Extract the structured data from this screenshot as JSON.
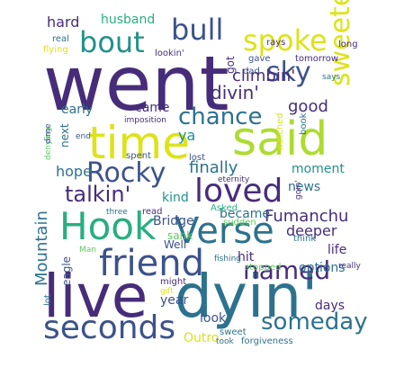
{
  "palette": {
    "dark-purple": "#472c7a",
    "navy": "#3b528b",
    "slate": "#2c728e",
    "teal": "#21918c",
    "sea-green": "#28ae80",
    "green": "#5ec962",
    "lime": "#addc30",
    "yellow": "#dde318"
  },
  "words": [
    {
      "text": "went",
      "color": "dark-purple"
    },
    {
      "text": "live",
      "color": "dark-purple"
    },
    {
      "text": "dyin'",
      "color": "slate"
    },
    {
      "text": "said",
      "color": "lime"
    },
    {
      "text": "time",
      "color": "yellow"
    },
    {
      "text": "Hook",
      "color": "sea-green"
    },
    {
      "text": "Verse",
      "color": "slate"
    },
    {
      "text": "friend",
      "color": "navy"
    },
    {
      "text": "seconds",
      "color": "navy"
    },
    {
      "text": "loved",
      "color": "dark-purple"
    },
    {
      "text": "Rocky",
      "color": "navy"
    },
    {
      "text": "spoke",
      "color": "yellow"
    },
    {
      "text": "bull",
      "color": "navy"
    },
    {
      "text": "bout",
      "color": "teal"
    },
    {
      "text": "sky",
      "color": "navy"
    },
    {
      "text": "sweeter",
      "color": "yellow"
    },
    {
      "text": "chance",
      "color": "slate"
    },
    {
      "text": "someday",
      "color": "slate"
    },
    {
      "text": "named",
      "color": "dark-purple"
    },
    {
      "text": "talkin'",
      "color": "dark-purple"
    },
    {
      "text": "climbin'",
      "color": "dark-purple"
    },
    {
      "text": "divin'",
      "color": "dark-purple"
    },
    {
      "text": "finally",
      "color": "slate"
    },
    {
      "text": "Fumanchu",
      "color": "dark-purple"
    },
    {
      "text": "Mountain",
      "color": "slate"
    },
    {
      "text": "good",
      "color": "dark-purple"
    },
    {
      "text": "husband",
      "color": "sea-green"
    },
    {
      "text": "hard",
      "color": "dark-purple"
    },
    {
      "text": "hope",
      "color": "slate"
    },
    {
      "text": "deeper",
      "color": "dark-purple"
    },
    {
      "text": "ya",
      "color": "teal"
    },
    {
      "text": "Bridge",
      "color": "navy"
    },
    {
      "text": "early",
      "color": "slate"
    },
    {
      "text": "came",
      "color": "dark-purple"
    },
    {
      "text": "moment",
      "color": "teal"
    },
    {
      "text": "news",
      "color": "slate"
    },
    {
      "text": "became",
      "color": "slate"
    },
    {
      "text": "kind",
      "color": "teal"
    },
    {
      "text": "hit",
      "color": "dark-purple"
    },
    {
      "text": "life",
      "color": "dark-purple"
    },
    {
      "text": "options",
      "color": "slate"
    },
    {
      "text": "days",
      "color": "dark-purple"
    },
    {
      "text": "year",
      "color": "navy"
    },
    {
      "text": "look",
      "color": "navy"
    },
    {
      "text": "Outro",
      "color": "yellow"
    },
    {
      "text": "eagle",
      "color": "navy"
    },
    {
      "text": "sank",
      "color": "green"
    },
    {
      "text": "Well",
      "color": "navy"
    },
    {
      "text": "next",
      "color": "slate"
    },
    {
      "text": "got",
      "color": "dark-purple"
    },
    {
      "text": "long",
      "color": "dark-purple"
    },
    {
      "text": "real",
      "color": "slate"
    },
    {
      "text": "flying",
      "color": "yellow"
    },
    {
      "text": "lookin'",
      "color": "dark-purple"
    },
    {
      "text": "gave",
      "color": "navy"
    },
    {
      "text": "rays",
      "color": "dark-purple"
    },
    {
      "text": "tomorrow",
      "color": "dark-purple"
    },
    {
      "text": "dad",
      "color": "navy"
    },
    {
      "text": "says",
      "color": "slate"
    },
    {
      "text": "imposition",
      "color": "dark-purple"
    },
    {
      "text": "eternity",
      "color": "dark-purple"
    },
    {
      "text": "lost",
      "color": "navy"
    },
    {
      "text": "spent",
      "color": "navy"
    },
    {
      "text": "denying",
      "color": "green"
    },
    {
      "text": "dime",
      "color": "navy"
    },
    {
      "text": "end",
      "color": "navy"
    },
    {
      "text": "three",
      "color": "slate"
    },
    {
      "text": "read",
      "color": "dark-purple"
    },
    {
      "text": "Asked",
      "color": "sea-green"
    },
    {
      "text": "sudden",
      "color": "green"
    },
    {
      "text": "goin'",
      "color": "dark-purple"
    },
    {
      "text": "watched",
      "color": "yellow"
    },
    {
      "text": "book",
      "color": "slate"
    },
    {
      "text": "think",
      "color": "slate"
    },
    {
      "text": "fishing",
      "color": "slate"
    },
    {
      "text": "really",
      "color": "dark-purple"
    },
    {
      "text": "Man",
      "color": "green"
    },
    {
      "text": "stopped",
      "color": "green"
    },
    {
      "text": "might",
      "color": "dark-purple"
    },
    {
      "text": "gift",
      "color": "yellow"
    },
    {
      "text": "lot",
      "color": "slate"
    },
    {
      "text": "sweet",
      "color": "slate"
    },
    {
      "text": "took",
      "color": "slate"
    },
    {
      "text": "forgiveness",
      "color": "slate"
    }
  ]
}
